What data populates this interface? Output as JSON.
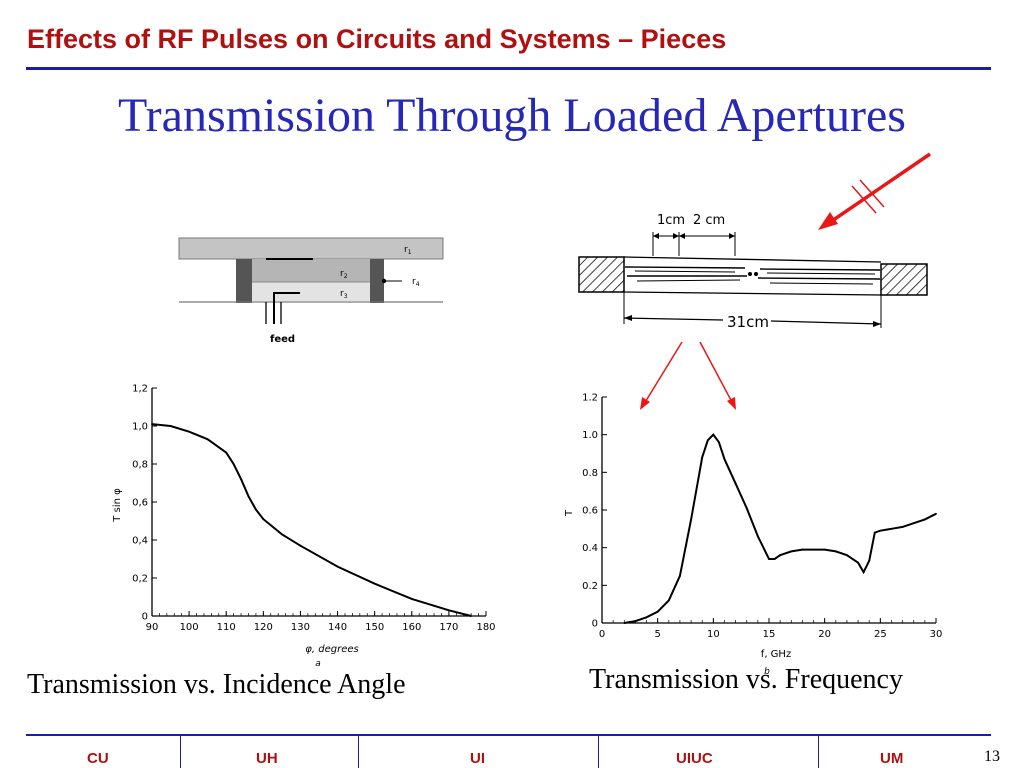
{
  "header": {
    "title": "Effects of RF Pulses on Circuits and Systems – Pieces"
  },
  "slide": {
    "title": "Transmission Through Loaded Apertures"
  },
  "aperture_diagram": {
    "labels": {
      "r1": "r",
      "r1_sub": "1",
      "r2": "r",
      "r2_sub": "2",
      "r3": "r",
      "r3_sub": "3",
      "r4": "r",
      "r4_sub": "4",
      "feed": "feed"
    }
  },
  "slot_diagram": {
    "dim_1cm": "1cm",
    "dim_2cm": "2 cm",
    "dim_31cm": "31cm"
  },
  "captions": {
    "left": "Transmission vs. Incidence Angle",
    "right": "Transmission vs. Frequency"
  },
  "chart_data": [
    {
      "type": "line",
      "xlabel": "φ, degrees",
      "ylabel": "T sin φ",
      "sublabel": "a",
      "xlim": [
        90,
        180
      ],
      "ylim": [
        0,
        1.2
      ],
      "xticks": [
        90,
        100,
        110,
        120,
        130,
        140,
        150,
        160,
        170,
        180
      ],
      "xtick_labels": [
        "90",
        "100",
        "110",
        "120",
        "130",
        "140",
        "150",
        "160",
        "170",
        "180"
      ],
      "yticks": [
        0,
        0.2,
        0.4,
        0.6,
        0.8,
        1.0,
        1.2
      ],
      "ytick_labels": [
        "0",
        "0,2",
        "0,4",
        "0,6",
        "0,8",
        "1,0",
        "1,2"
      ],
      "x": [
        90,
        95,
        100,
        105,
        110,
        112,
        114,
        116,
        118,
        120,
        125,
        130,
        140,
        150,
        160,
        170,
        176
      ],
      "y": [
        1.01,
        1.0,
        0.97,
        0.93,
        0.86,
        0.8,
        0.72,
        0.63,
        0.56,
        0.51,
        0.43,
        0.37,
        0.26,
        0.17,
        0.09,
        0.03,
        0.0
      ]
    },
    {
      "type": "line",
      "xlabel": "f, GHz",
      "ylabel": "T",
      "sublabel": "b",
      "xlim": [
        0,
        30
      ],
      "ylim": [
        0,
        1.2
      ],
      "xticks": [
        0,
        5,
        10,
        15,
        20,
        25,
        30
      ],
      "xtick_labels": [
        "0",
        "5",
        "10",
        "15",
        "20",
        "25",
        "30"
      ],
      "yticks": [
        0,
        0.2,
        0.4,
        0.6,
        0.8,
        1.0,
        1.2
      ],
      "ytick_labels": [
        "0",
        "0.2",
        "0.4",
        "0.6",
        "0.8",
        "1.0",
        "1.2"
      ],
      "x": [
        2,
        3,
        4,
        5,
        6,
        7,
        8,
        9,
        9.5,
        10,
        10.5,
        11,
        12,
        13,
        14,
        15,
        15.5,
        16,
        17,
        18,
        19,
        20,
        21,
        22,
        23,
        23.5,
        24,
        24.5,
        25,
        26,
        27,
        28,
        29,
        30
      ],
      "y": [
        0.0,
        0.01,
        0.03,
        0.06,
        0.12,
        0.25,
        0.55,
        0.88,
        0.97,
        1.0,
        0.96,
        0.87,
        0.74,
        0.61,
        0.46,
        0.34,
        0.34,
        0.36,
        0.38,
        0.39,
        0.39,
        0.39,
        0.38,
        0.36,
        0.32,
        0.27,
        0.33,
        0.48,
        0.49,
        0.5,
        0.51,
        0.53,
        0.55,
        0.58
      ]
    }
  ],
  "footer": {
    "items": [
      "CU",
      "UH",
      "UI",
      "UIUC",
      "UM"
    ],
    "page": "13"
  },
  "colors": {
    "header": "#b01010",
    "title": "#2727b8",
    "rule": "#1c1ca8",
    "arrow": "#e81818"
  }
}
